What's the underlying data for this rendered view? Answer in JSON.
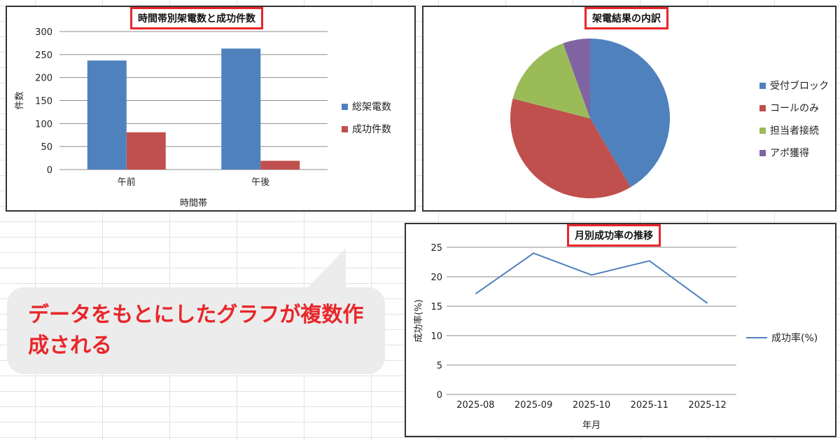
{
  "charts": {
    "bar": {
      "title": "時間帯別架電数と成功件数",
      "xlabel": "時間帯",
      "ylabel": "件数"
    },
    "pie": {
      "title": "架電結果の内訳"
    },
    "line": {
      "title": "月別成功率の推移",
      "xlabel": "年月",
      "ylabel": "成功率(%)"
    }
  },
  "colors": {
    "blue": "#4f81bd",
    "red": "#c0504d",
    "green": "#9bbb59",
    "purple": "#8064a2",
    "accent": "#e8262a"
  },
  "callout": {
    "text": "データをもとにしたグラフが複数作成される"
  },
  "chart_data": [
    {
      "type": "bar",
      "title": "時間帯別架電数と成功件数",
      "xlabel": "時間帯",
      "ylabel": "件数",
      "categories": [
        "午前",
        "午後"
      ],
      "series": [
        {
          "name": "総架電数",
          "values": [
            237,
            263
          ],
          "color": "#4f81bd"
        },
        {
          "name": "成功件数",
          "values": [
            81,
            19
          ],
          "color": "#c0504d"
        }
      ],
      "ylim": [
        0,
        300
      ],
      "yticks": [
        0,
        50,
        100,
        150,
        200,
        250,
        300
      ],
      "grid": true,
      "legend": "right"
    },
    {
      "type": "pie",
      "title": "架電結果の内訳",
      "labels": [
        "受付ブロック",
        "コールのみ",
        "担当者接続",
        "アポ獲得"
      ],
      "values": [
        41.5,
        37.5,
        15.5,
        5.5
      ],
      "colors": [
        "#4f81bd",
        "#c0504d",
        "#9bbb59",
        "#8064a2"
      ],
      "legend": "right"
    },
    {
      "type": "line",
      "title": "月別成功率の推移",
      "xlabel": "年月",
      "ylabel": "成功率(%)",
      "categories": [
        "2025-08",
        "2025-09",
        "2025-10",
        "2025-11",
        "2025-12"
      ],
      "series": [
        {
          "name": "成功率(%)",
          "values": [
            17.1,
            24.0,
            20.3,
            22.7,
            15.5
          ],
          "color": "#4f81bd"
        }
      ],
      "ylim": [
        0,
        25
      ],
      "yticks": [
        0,
        5,
        10,
        15,
        20,
        25
      ],
      "grid": true,
      "legend": "right"
    }
  ]
}
